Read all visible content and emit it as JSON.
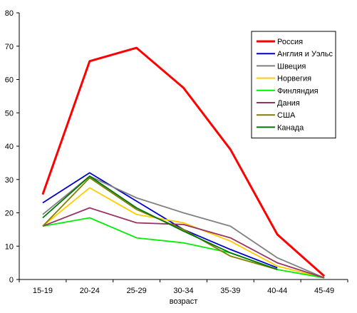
{
  "chart_data": {
    "type": "line",
    "title": "",
    "xlabel": "возраст",
    "ylabel": "",
    "categories": [
      "15-19",
      "20-24",
      "25-29",
      "30-34",
      "35-39",
      "40-44",
      "45-49"
    ],
    "ylim": [
      0,
      80
    ],
    "yticks": [
      0,
      10,
      20,
      30,
      40,
      50,
      60,
      70,
      80
    ],
    "grid": false,
    "legend_position": "top-right",
    "series": [
      {
        "name": "Россия",
        "color": "#ff0000",
        "emphasis": true,
        "values": [
          25.5,
          65.5,
          69.5,
          57.5,
          39,
          13.5,
          1
        ]
      },
      {
        "name": "Англия и Уэльс",
        "color": "#0000cc",
        "values": [
          23,
          32,
          23.5,
          15,
          9,
          3.5,
          null
        ]
      },
      {
        "name": "Швеция",
        "color": "#808080",
        "values": [
          19.5,
          31,
          24.5,
          20,
          16,
          6.5,
          0.5
        ]
      },
      {
        "name": "Норвегия",
        "color": "#ffcc00",
        "values": [
          16,
          27.5,
          19.5,
          17,
          11.5,
          4,
          0.5
        ]
      },
      {
        "name": "Финляндия",
        "color": "#00ee00",
        "values": [
          16,
          18.5,
          12.5,
          11,
          8,
          3,
          0.5
        ]
      },
      {
        "name": "Дания",
        "color": "#993366",
        "values": [
          16,
          21.5,
          17,
          16.5,
          12.5,
          5,
          0.5
        ]
      },
      {
        "name": "США",
        "color": "#808000",
        "values": [
          16,
          30.5,
          21,
          15,
          7,
          3,
          null
        ]
      },
      {
        "name": "Канада",
        "color": "#007700",
        "values": [
          18.5,
          31,
          21.5,
          14.5,
          8,
          3,
          null
        ]
      }
    ]
  }
}
